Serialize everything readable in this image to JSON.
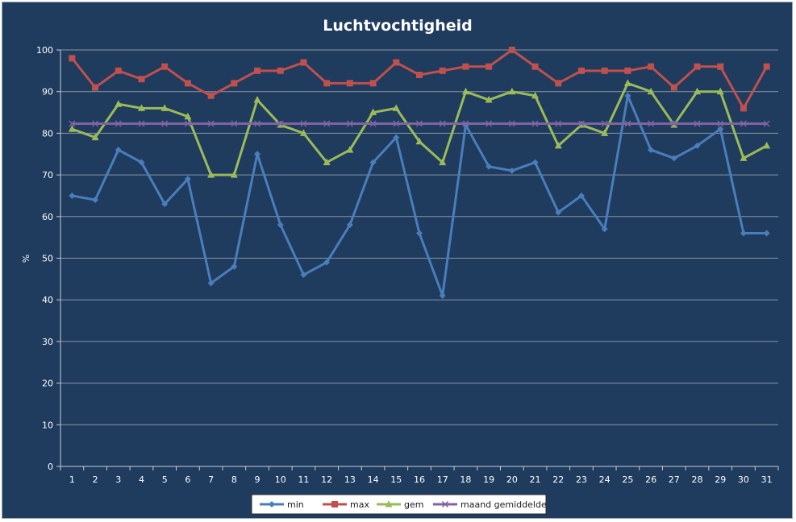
{
  "chart_data": {
    "type": "line",
    "title": "Luchtvochtigheid",
    "xlabel": "",
    "ylabel": "%",
    "ylim": [
      0,
      100
    ],
    "yticks": [
      0,
      10,
      20,
      30,
      40,
      50,
      60,
      70,
      80,
      90,
      100
    ],
    "grid": true,
    "legend": "bottom",
    "categories": [
      "1",
      "2",
      "3",
      "4",
      "5",
      "6",
      "7",
      "8",
      "9",
      "10",
      "11",
      "12",
      "13",
      "14",
      "15",
      "16",
      "17",
      "18",
      "19",
      "20",
      "21",
      "22",
      "23",
      "24",
      "25",
      "26",
      "27",
      "28",
      "29",
      "30",
      "31"
    ],
    "series": [
      {
        "name": "min",
        "color": "#4a7ebb",
        "marker": "diamond",
        "values": [
          65,
          64,
          76,
          73,
          63,
          69,
          44,
          48,
          75,
          58,
          46,
          49,
          58,
          73,
          79,
          56,
          41,
          82,
          72,
          71,
          73,
          61,
          65,
          57,
          89,
          76,
          74,
          77,
          81,
          56,
          56
        ]
      },
      {
        "name": "max",
        "color": "#c0504d",
        "marker": "square",
        "values": [
          98,
          91,
          95,
          93,
          96,
          92,
          89,
          92,
          95,
          95,
          97,
          92,
          92,
          92,
          97,
          94,
          95,
          96,
          96,
          100,
          96,
          92,
          95,
          95,
          95,
          96,
          91,
          96,
          96,
          86,
          96
        ]
      },
      {
        "name": "gem",
        "color": "#9bbb59",
        "marker": "triangle",
        "values": [
          81,
          79,
          87,
          86,
          86,
          84,
          70,
          70,
          88,
          82,
          80,
          73,
          76,
          85,
          86,
          78,
          73,
          90,
          88,
          90,
          89,
          77,
          82,
          80,
          92,
          90,
          82,
          90,
          90,
          74,
          77
        ]
      },
      {
        "name": "maand gemiddelde",
        "color": "#8064a2",
        "marker": "x",
        "values": [
          82.3,
          82.3,
          82.3,
          82.3,
          82.3,
          82.3,
          82.3,
          82.3,
          82.3,
          82.3,
          82.3,
          82.3,
          82.3,
          82.3,
          82.3,
          82.3,
          82.3,
          82.3,
          82.3,
          82.3,
          82.3,
          82.3,
          82.3,
          82.3,
          82.3,
          82.3,
          82.3,
          82.3,
          82.3,
          82.3,
          82.3
        ]
      }
    ]
  }
}
